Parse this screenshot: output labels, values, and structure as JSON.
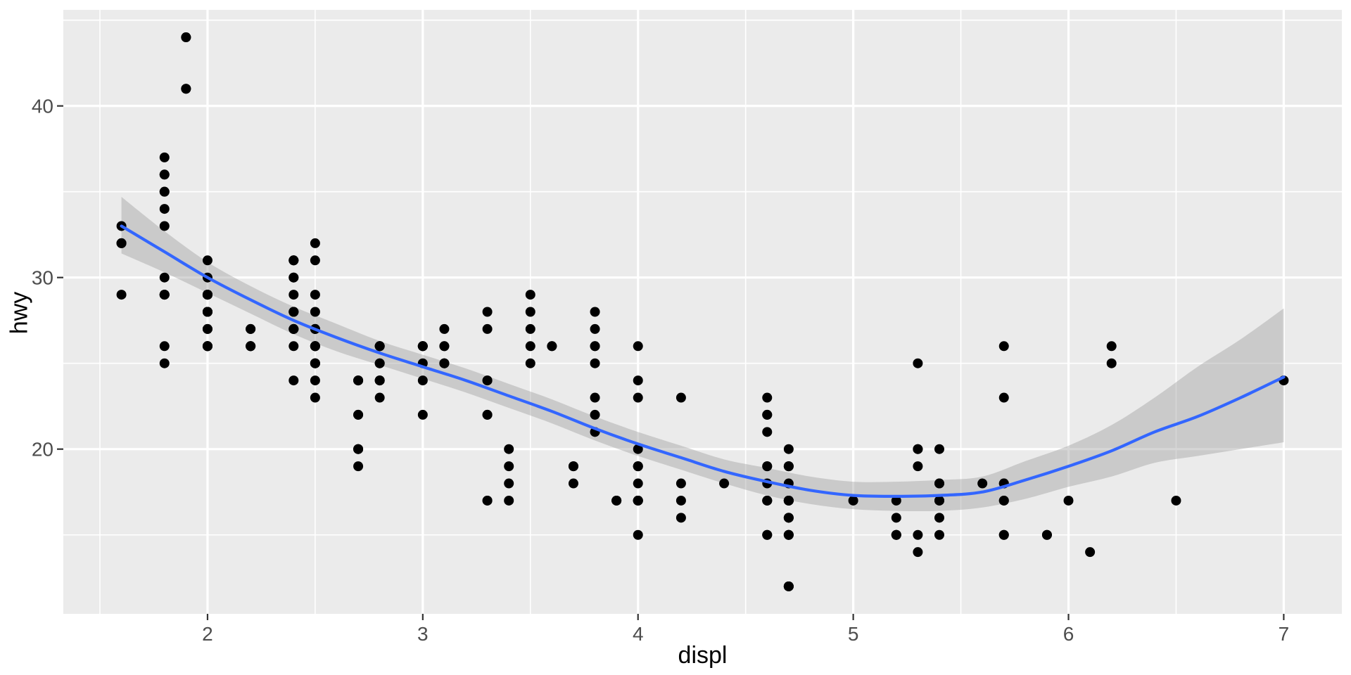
{
  "chart_data": {
    "type": "scatter",
    "title": "",
    "xlabel": "displ",
    "ylabel": "hwy",
    "x_ticks": [
      2,
      3,
      4,
      5,
      6,
      7
    ],
    "y_ticks": [
      20,
      30,
      40
    ],
    "x_minor_ticks": [
      1.5,
      2.5,
      3.5,
      4.5,
      5.5,
      6.5
    ],
    "y_minor_ticks": [
      15,
      25,
      35,
      45
    ],
    "xlim": [
      1.33,
      7.27
    ],
    "ylim": [
      10.4,
      45.6
    ],
    "grid": true,
    "legend": "none",
    "points": [
      [
        1.8,
        29
      ],
      [
        1.8,
        29
      ],
      [
        2.0,
        31
      ],
      [
        2.0,
        30
      ],
      [
        2.8,
        26
      ],
      [
        2.8,
        26
      ],
      [
        3.1,
        27
      ],
      [
        1.8,
        26
      ],
      [
        1.8,
        25
      ],
      [
        2.0,
        28
      ],
      [
        2.0,
        27
      ],
      [
        2.8,
        25
      ],
      [
        2.8,
        25
      ],
      [
        3.1,
        25
      ],
      [
        3.1,
        25
      ],
      [
        2.8,
        24
      ],
      [
        3.1,
        25
      ],
      [
        4.2,
        23
      ],
      [
        5.3,
        20
      ],
      [
        5.3,
        15
      ],
      [
        5.3,
        20
      ],
      [
        5.7,
        17
      ],
      [
        6.0,
        17
      ],
      [
        5.7,
        26
      ],
      [
        5.7,
        23
      ],
      [
        6.2,
        26
      ],
      [
        6.2,
        25
      ],
      [
        7.0,
        24
      ],
      [
        5.3,
        19
      ],
      [
        5.3,
        14
      ],
      [
        5.7,
        15
      ],
      [
        6.5,
        17
      ],
      [
        2.4,
        27
      ],
      [
        2.4,
        30
      ],
      [
        3.1,
        26
      ],
      [
        3.5,
        29
      ],
      [
        3.6,
        26
      ],
      [
        2.4,
        24
      ],
      [
        3.0,
        24
      ],
      [
        3.3,
        22
      ],
      [
        3.3,
        22
      ],
      [
        3.3,
        24
      ],
      [
        3.3,
        24
      ],
      [
        3.3,
        17
      ],
      [
        3.8,
        22
      ],
      [
        3.8,
        21
      ],
      [
        3.8,
        23
      ],
      [
        4.0,
        23
      ],
      [
        3.7,
        19
      ],
      [
        3.7,
        18
      ],
      [
        3.9,
        17
      ],
      [
        3.9,
        17
      ],
      [
        4.7,
        19
      ],
      [
        4.7,
        19
      ],
      [
        4.7,
        12
      ],
      [
        5.2,
        17
      ],
      [
        5.2,
        15
      ],
      [
        3.9,
        17
      ],
      [
        4.7,
        17
      ],
      [
        4.7,
        12
      ],
      [
        4.7,
        17
      ],
      [
        4.7,
        16
      ],
      [
        4.7,
        18
      ],
      [
        5.2,
        15
      ],
      [
        5.7,
        15
      ],
      [
        5.9,
        15
      ],
      [
        4.7,
        17
      ],
      [
        4.7,
        15
      ],
      [
        4.7,
        16
      ],
      [
        4.7,
        12
      ],
      [
        4.7,
        15
      ],
      [
        4.7,
        16
      ],
      [
        4.7,
        15
      ],
      [
        5.2,
        16
      ],
      [
        5.2,
        15
      ],
      [
        5.7,
        17
      ],
      [
        5.9,
        15
      ],
      [
        4.6,
        17
      ],
      [
        5.4,
        17
      ],
      [
        5.4,
        18
      ],
      [
        4.0,
        17
      ],
      [
        4.0,
        19
      ],
      [
        4.0,
        17
      ],
      [
        4.0,
        19
      ],
      [
        4.6,
        19
      ],
      [
        5.0,
        17
      ],
      [
        4.2,
        17
      ],
      [
        4.2,
        16
      ],
      [
        4.6,
        18
      ],
      [
        4.6,
        15
      ],
      [
        4.6,
        17
      ],
      [
        4.6,
        17
      ],
      [
        5.4,
        15
      ],
      [
        3.8,
        26
      ],
      [
        3.8,
        25
      ],
      [
        4.0,
        26
      ],
      [
        4.0,
        24
      ],
      [
        4.6,
        21
      ],
      [
        4.6,
        22
      ],
      [
        4.6,
        23
      ],
      [
        4.6,
        22
      ],
      [
        5.4,
        20
      ],
      [
        1.6,
        33
      ],
      [
        1.6,
        32
      ],
      [
        1.6,
        32
      ],
      [
        1.6,
        29
      ],
      [
        1.6,
        32
      ],
      [
        1.8,
        34
      ],
      [
        1.8,
        36
      ],
      [
        1.8,
        36
      ],
      [
        2.0,
        29
      ],
      [
        2.4,
        26
      ],
      [
        2.4,
        27
      ],
      [
        2.4,
        30
      ],
      [
        2.4,
        31
      ],
      [
        2.5,
        26
      ],
      [
        2.5,
        26
      ],
      [
        3.3,
        28
      ],
      [
        2.0,
        26
      ],
      [
        2.0,
        28
      ],
      [
        2.0,
        27
      ],
      [
        2.0,
        28
      ],
      [
        2.0,
        26
      ],
      [
        2.7,
        24
      ],
      [
        2.7,
        24
      ],
      [
        2.7,
        24
      ],
      [
        3.0,
        22
      ],
      [
        3.7,
        19
      ],
      [
        4.0,
        20
      ],
      [
        4.7,
        17
      ],
      [
        4.7,
        12
      ],
      [
        4.7,
        19
      ],
      [
        5.7,
        18
      ],
      [
        6.1,
        14
      ],
      [
        4.0,
        15
      ],
      [
        4.2,
        18
      ],
      [
        4.4,
        18
      ],
      [
        4.6,
        15
      ],
      [
        5.4,
        17
      ],
      [
        5.4,
        16
      ],
      [
        5.4,
        18
      ],
      [
        4.0,
        17
      ],
      [
        4.0,
        19
      ],
      [
        4.6,
        19
      ],
      [
        2.4,
        29
      ],
      [
        2.4,
        27
      ],
      [
        2.5,
        31
      ],
      [
        2.5,
        32
      ],
      [
        3.5,
        27
      ],
      [
        3.5,
        26
      ],
      [
        3.0,
        26
      ],
      [
        3.0,
        25
      ],
      [
        3.5,
        25
      ],
      [
        3.3,
        17
      ],
      [
        4.0,
        17
      ],
      [
        5.6,
        18
      ],
      [
        3.1,
        26
      ],
      [
        3.8,
        26
      ],
      [
        3.8,
        27
      ],
      [
        3.8,
        28
      ],
      [
        5.3,
        25
      ],
      [
        2.5,
        23
      ],
      [
        2.5,
        24
      ],
      [
        2.5,
        25
      ],
      [
        2.5,
        27
      ],
      [
        2.5,
        25
      ],
      [
        2.5,
        26
      ],
      [
        2.2,
        26
      ],
      [
        2.2,
        26
      ],
      [
        2.5,
        26
      ],
      [
        2.5,
        25
      ],
      [
        2.5,
        27
      ],
      [
        2.5,
        25
      ],
      [
        2.5,
        27
      ],
      [
        2.5,
        26
      ],
      [
        2.7,
        20
      ],
      [
        2.7,
        20
      ],
      [
        2.7,
        22
      ],
      [
        3.4,
        17
      ],
      [
        3.4,
        19
      ],
      [
        4.0,
        18
      ],
      [
        4.7,
        20
      ],
      [
        2.2,
        26
      ],
      [
        2.2,
        27
      ],
      [
        2.4,
        28
      ],
      [
        2.4,
        31
      ],
      [
        3.0,
        26
      ],
      [
        3.0,
        26
      ],
      [
        3.5,
        28
      ],
      [
        2.2,
        26
      ],
      [
        2.2,
        27
      ],
      [
        2.4,
        28
      ],
      [
        2.4,
        31
      ],
      [
        3.0,
        26
      ],
      [
        3.3,
        27
      ],
      [
        2.4,
        28
      ],
      [
        1.8,
        30
      ],
      [
        1.8,
        33
      ],
      [
        1.8,
        35
      ],
      [
        1.8,
        37
      ],
      [
        1.8,
        35
      ],
      [
        4.7,
        17
      ],
      [
        5.7,
        18
      ],
      [
        2.7,
        20
      ],
      [
        2.7,
        22
      ],
      [
        2.7,
        19
      ],
      [
        3.4,
        18
      ],
      [
        3.4,
        20
      ],
      [
        4.0,
        17
      ],
      [
        2.0,
        29
      ],
      [
        2.0,
        26
      ],
      [
        2.0,
        29
      ],
      [
        2.0,
        29
      ],
      [
        2.8,
        24
      ],
      [
        1.9,
        44
      ],
      [
        2.0,
        29
      ],
      [
        2.0,
        26
      ],
      [
        2.0,
        29
      ],
      [
        1.9,
        41
      ],
      [
        2.0,
        26
      ],
      [
        2.0,
        29
      ],
      [
        2.8,
        23
      ],
      [
        2.8,
        24
      ],
      [
        1.9,
        44
      ],
      [
        1.9,
        41
      ],
      [
        2.0,
        29
      ],
      [
        2.0,
        26
      ],
      [
        2.5,
        28
      ],
      [
        2.5,
        29
      ],
      [
        1.8,
        29
      ],
      [
        1.8,
        29
      ],
      [
        2.0,
        28
      ],
      [
        2.0,
        29
      ],
      [
        2.8,
        26
      ],
      [
        2.8,
        26
      ],
      [
        3.6,
        26
      ]
    ],
    "smooth": {
      "x": [
        1.6,
        1.8,
        2.0,
        2.2,
        2.4,
        2.6,
        2.8,
        3.0,
        3.2,
        3.4,
        3.6,
        3.8,
        4.0,
        4.2,
        4.4,
        4.6,
        4.8,
        5.0,
        5.2,
        5.4,
        5.6,
        5.8,
        6.0,
        6.2,
        6.4,
        6.6,
        6.8,
        7.0
      ],
      "fit": [
        33.0,
        31.5,
        30.0,
        28.7,
        27.5,
        26.5,
        25.6,
        24.8,
        24.0,
        23.1,
        22.2,
        21.2,
        20.3,
        19.5,
        18.7,
        18.1,
        17.6,
        17.3,
        17.25,
        17.3,
        17.5,
        18.2,
        19.0,
        19.9,
        21.0,
        21.9,
        23.0,
        24.2
      ],
      "lower": [
        31.4,
        30.3,
        29.1,
        27.9,
        26.7,
        25.7,
        24.9,
        24.1,
        23.3,
        22.4,
        21.5,
        20.5,
        19.6,
        18.8,
        18.0,
        17.3,
        16.8,
        16.5,
        16.4,
        16.4,
        16.6,
        17.1,
        17.8,
        18.4,
        19.2,
        19.6,
        20.0,
        20.4
      ],
      "upper": [
        34.7,
        32.7,
        30.9,
        29.5,
        28.3,
        27.3,
        26.3,
        25.5,
        24.7,
        23.8,
        22.9,
        21.9,
        21.0,
        20.2,
        19.4,
        18.9,
        18.4,
        18.1,
        18.1,
        18.2,
        18.4,
        19.3,
        20.2,
        21.4,
        23.0,
        24.8,
        26.4,
        28.2
      ]
    },
    "style": {
      "panel_bg": "#EBEBEB",
      "grid_color": "#FFFFFF",
      "point_color": "#000000",
      "smooth_line_color": "#3366FF",
      "ribbon_color": "#999999",
      "ribbon_opacity": 0.4,
      "tick_label_color": "#4D4D4D",
      "tick_mark_color": "#333333",
      "axis_title_color": "#000000"
    }
  }
}
